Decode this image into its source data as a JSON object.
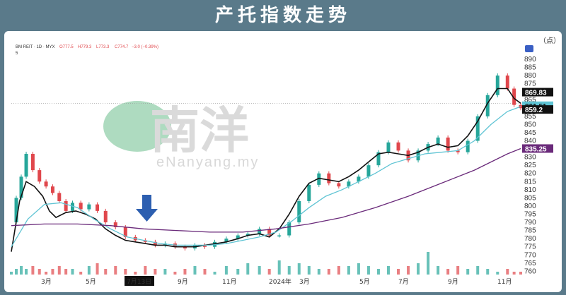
{
  "title": "产托指数走势",
  "chart_data": {
    "type": "candlestick",
    "header": {
      "symbol": "BM REIT · 1D · MYX",
      "open": "O777.5",
      "high": "H779.3",
      "low": "L773.3",
      "close": "C774.7",
      "change": "−3.0 (−0.39%)",
      "sub": "5"
    },
    "unit": "（点）",
    "ylim": [
      758,
      893
    ],
    "yticks": [
      760,
      765,
      770,
      775,
      780,
      785,
      790,
      795,
      800,
      805,
      810,
      815,
      820,
      825,
      830,
      835,
      840,
      845,
      850,
      855,
      860,
      865,
      870,
      875,
      880,
      885,
      890
    ],
    "x_labels": [
      "3月",
      "5月",
      "7月13日",
      "9月",
      "11月",
      "2024年",
      "3月",
      "5月",
      "7月",
      "9月",
      "11月"
    ],
    "highlight_label": "7月13日",
    "price_badges": [
      {
        "value": "869.83",
        "color": "#111111",
        "text_color": "#ffffff"
      },
      {
        "value": "861.51",
        "color": "#5fc4d4",
        "text_color": "#111111"
      },
      {
        "value": "859.2",
        "color": "#111111",
        "text_color": "#ffffff"
      },
      {
        "value": "835.25",
        "color": "#6a2a7a",
        "text_color": "#ffffff"
      }
    ],
    "series": [
      {
        "name": "price",
        "color_up": "#26a69a",
        "color_down": "#e0474c",
        "values": [
          [
            0,
            790
          ],
          [
            3,
            805
          ],
          [
            6,
            818
          ],
          [
            9,
            832
          ],
          [
            13,
            822
          ],
          [
            17,
            815
          ],
          [
            21,
            812
          ],
          [
            25,
            808
          ],
          [
            29,
            803
          ],
          [
            33,
            797
          ],
          [
            37,
            802
          ],
          [
            42,
            798
          ],
          [
            47,
            801
          ],
          [
            52,
            797
          ],
          [
            57,
            790
          ],
          [
            63,
            787
          ],
          [
            69,
            781
          ],
          [
            75,
            779
          ],
          [
            81,
            778
          ],
          [
            87,
            776
          ],
          [
            93,
            777
          ],
          [
            99,
            775
          ],
          [
            105,
            774
          ],
          [
            111,
            776
          ],
          [
            117,
            775
          ],
          [
            123,
            778
          ],
          [
            130,
            780
          ],
          [
            137,
            782
          ],
          [
            143,
            783
          ],
          [
            150,
            786
          ],
          [
            156,
            782
          ],
          [
            162,
            782
          ],
          [
            168,
            790
          ],
          [
            174,
            803
          ],
          [
            180,
            813
          ],
          [
            186,
            820
          ],
          [
            192,
            814
          ],
          [
            198,
            812
          ],
          [
            204,
            815
          ],
          [
            210,
            818
          ],
          [
            216,
            825
          ],
          [
            222,
            833
          ],
          [
            228,
            839
          ],
          [
            234,
            834
          ],
          [
            240,
            828
          ],
          [
            246,
            834
          ],
          [
            252,
            838
          ],
          [
            258,
            842
          ],
          [
            264,
            834
          ],
          [
            270,
            833
          ],
          [
            276,
            840
          ],
          [
            282,
            855
          ],
          [
            288,
            868
          ],
          [
            294,
            880
          ],
          [
            300,
            872
          ],
          [
            304,
            862
          ],
          [
            308,
            860
          ]
        ]
      },
      {
        "name": "MA5",
        "color": "#111111",
        "values": [
          [
            0,
            772
          ],
          [
            5,
            803
          ],
          [
            9,
            815
          ],
          [
            14,
            812
          ],
          [
            19,
            806
          ],
          [
            23,
            797
          ],
          [
            27,
            793
          ],
          [
            33,
            796
          ],
          [
            39,
            797
          ],
          [
            45,
            795
          ],
          [
            51,
            792
          ],
          [
            57,
            786
          ],
          [
            63,
            782
          ],
          [
            69,
            779
          ],
          [
            75,
            778
          ],
          [
            81,
            777
          ],
          [
            87,
            776
          ],
          [
            93,
            776
          ],
          [
            99,
            775
          ],
          [
            105,
            775
          ],
          [
            111,
            775
          ],
          [
            117,
            776
          ],
          [
            124,
            777
          ],
          [
            130,
            778
          ],
          [
            137,
            780
          ],
          [
            143,
            782
          ],
          [
            150,
            783
          ],
          [
            156,
            781
          ],
          [
            162,
            786
          ],
          [
            168,
            795
          ],
          [
            174,
            806
          ],
          [
            180,
            814
          ],
          [
            186,
            817
          ],
          [
            192,
            816
          ],
          [
            198,
            815
          ],
          [
            204,
            818
          ],
          [
            210,
            822
          ],
          [
            216,
            827
          ],
          [
            222,
            832
          ],
          [
            228,
            833
          ],
          [
            234,
            832
          ],
          [
            240,
            831
          ],
          [
            246,
            833
          ],
          [
            252,
            836
          ],
          [
            258,
            838
          ],
          [
            264,
            836
          ],
          [
            270,
            837
          ],
          [
            276,
            843
          ],
          [
            282,
            852
          ],
          [
            288,
            863
          ],
          [
            294,
            872
          ],
          [
            300,
            872
          ],
          [
            304,
            866
          ],
          [
            308,
            863
          ]
        ]
      },
      {
        "name": "MA20",
        "color": "#5fc4d4",
        "values": [
          [
            0,
            775
          ],
          [
            10,
            792
          ],
          [
            20,
            801
          ],
          [
            30,
            802
          ],
          [
            40,
            799
          ],
          [
            50,
            792
          ],
          [
            60,
            786
          ],
          [
            70,
            781
          ],
          [
            80,
            779
          ],
          [
            90,
            777
          ],
          [
            100,
            776
          ],
          [
            110,
            776
          ],
          [
            120,
            776
          ],
          [
            130,
            777
          ],
          [
            140,
            779
          ],
          [
            150,
            781
          ],
          [
            160,
            784
          ],
          [
            170,
            791
          ],
          [
            180,
            799
          ],
          [
            190,
            806
          ],
          [
            200,
            810
          ],
          [
            210,
            815
          ],
          [
            220,
            820
          ],
          [
            230,
            826
          ],
          [
            240,
            829
          ],
          [
            250,
            832
          ],
          [
            260,
            833
          ],
          [
            270,
            834
          ],
          [
            280,
            840
          ],
          [
            290,
            850
          ],
          [
            300,
            858
          ],
          [
            308,
            861
          ]
        ]
      },
      {
        "name": "MA200",
        "color": "#6a2a7a",
        "values": [
          [
            0,
            788
          ],
          [
            20,
            789
          ],
          [
            40,
            789
          ],
          [
            60,
            788
          ],
          [
            80,
            786
          ],
          [
            100,
            785
          ],
          [
            120,
            784
          ],
          [
            140,
            784
          ],
          [
            160,
            786
          ],
          [
            180,
            789
          ],
          [
            200,
            793
          ],
          [
            220,
            799
          ],
          [
            240,
            806
          ],
          [
            260,
            814
          ],
          [
            280,
            822
          ],
          [
            300,
            832
          ],
          [
            308,
            835.25
          ]
        ]
      }
    ],
    "volume_points": [
      [
        0,
        1
      ],
      [
        3,
        2
      ],
      [
        6,
        3
      ],
      [
        9,
        2
      ],
      [
        13,
        3
      ],
      [
        17,
        2
      ],
      [
        21,
        1
      ],
      [
        25,
        2
      ],
      [
        29,
        3
      ],
      [
        33,
        2
      ],
      [
        37,
        2
      ],
      [
        42,
        1
      ],
      [
        47,
        3
      ],
      [
        52,
        4
      ],
      [
        57,
        2
      ],
      [
        63,
        3
      ],
      [
        69,
        2
      ],
      [
        75,
        1
      ],
      [
        81,
        3
      ],
      [
        87,
        2
      ],
      [
        93,
        2
      ],
      [
        99,
        1
      ],
      [
        105,
        2
      ],
      [
        111,
        3
      ],
      [
        117,
        2
      ],
      [
        123,
        1
      ],
      [
        130,
        3
      ],
      [
        137,
        2
      ],
      [
        143,
        4
      ],
      [
        150,
        3
      ],
      [
        156,
        2
      ],
      [
        162,
        5
      ],
      [
        168,
        3
      ],
      [
        174,
        4
      ],
      [
        180,
        3
      ],
      [
        186,
        2
      ],
      [
        192,
        2
      ],
      [
        198,
        3
      ],
      [
        204,
        3
      ],
      [
        210,
        4
      ],
      [
        216,
        3
      ],
      [
        222,
        2
      ],
      [
        228,
        3
      ],
      [
        234,
        2
      ],
      [
        240,
        3
      ],
      [
        246,
        4
      ],
      [
        252,
        8
      ],
      [
        258,
        3
      ],
      [
        264,
        2
      ],
      [
        270,
        3
      ],
      [
        276,
        2
      ],
      [
        282,
        3
      ],
      [
        288,
        2
      ],
      [
        294,
        1
      ],
      [
        300,
        2
      ],
      [
        304,
        1
      ],
      [
        308,
        1
      ]
    ]
  },
  "watermark": {
    "brand_cn": "南洋",
    "brand_en": "eNanyang.my"
  }
}
